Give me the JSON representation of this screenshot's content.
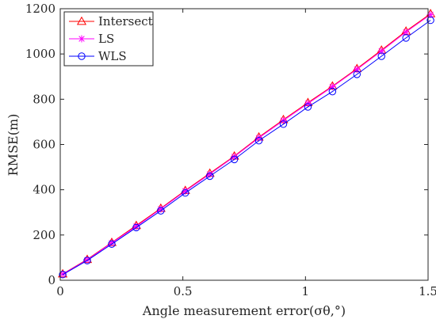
{
  "chart_data": {
    "type": "line",
    "xlabel": "Angle measurement error(σθ,°)",
    "ylabel": "RMSE(m)",
    "xlim": [
      0,
      1.5
    ],
    "ylim": [
      0,
      1200
    ],
    "x_ticks": [
      "0",
      "0.5",
      "1",
      "1.5"
    ],
    "y_ticks": [
      "0",
      "200",
      "400",
      "600",
      "800",
      "1000",
      "1200"
    ],
    "grid": false,
    "legend_position": "top-left",
    "x": [
      0.01,
      0.11,
      0.21,
      0.31,
      0.41,
      0.51,
      0.61,
      0.71,
      0.81,
      0.91,
      1.01,
      1.11,
      1.21,
      1.31,
      1.41,
      1.51
    ],
    "series": [
      {
        "name": "Intersect",
        "color": "#ff0000",
        "marker": "triangle",
        "values": [
          28,
          92,
          167,
          242,
          318,
          397,
          473,
          549,
          633,
          710,
          785,
          858,
          935,
          1017,
          1101,
          1178
        ]
      },
      {
        "name": "LS",
        "color": "#ff00ff",
        "marker": "asterisk",
        "values": [
          27,
          90,
          165,
          238,
          315,
          394,
          469,
          546,
          629,
          706,
          781,
          855,
          932,
          1013,
          1097,
          1174
        ]
      },
      {
        "name": "WLS",
        "color": "#0000ff",
        "marker": "circle",
        "values": [
          25,
          87,
          160,
          233,
          307,
          386,
          460,
          534,
          617,
          690,
          766,
          834,
          910,
          990,
          1071,
          1149
        ]
      }
    ]
  }
}
